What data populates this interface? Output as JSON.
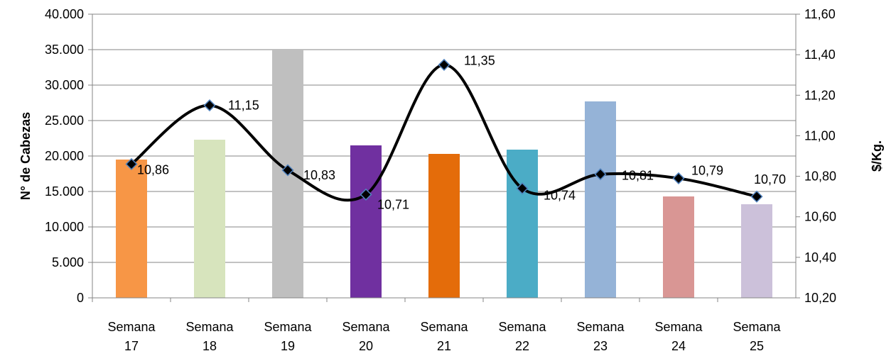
{
  "chart_data": {
    "type": "bar",
    "title": "",
    "categories": [
      [
        "Semana",
        "17"
      ],
      [
        "Semana",
        "18"
      ],
      [
        "Semana",
        "19"
      ],
      [
        "Semana",
        "20"
      ],
      [
        "Semana",
        "21"
      ],
      [
        "Semana",
        "22"
      ],
      [
        "Semana",
        "23"
      ],
      [
        "Semana",
        "24"
      ],
      [
        "Semana",
        "25"
      ]
    ],
    "series": [
      {
        "type": "bar",
        "axis": "left",
        "values": [
          19500,
          22300,
          35100,
          21500,
          20300,
          20900,
          27700,
          14300,
          13200
        ]
      },
      {
        "type": "line",
        "axis": "right",
        "values": [
          10.86,
          11.15,
          10.83,
          10.71,
          11.35,
          10.74,
          10.81,
          10.79,
          10.7
        ],
        "labels": [
          "10,86",
          "11,15",
          "10,83",
          "10,71",
          "11,35",
          "10,74",
          "10,81",
          "10,79",
          "10,70"
        ],
        "color": "#000000",
        "marker": "diamond"
      }
    ],
    "bar_colors": [
      "#F79646",
      "#D7E4BD",
      "#BFBFBF",
      "#7030A0",
      "#E46C0A",
      "#4BACC6",
      "#95B3D7",
      "#D99694",
      "#CCC1DA"
    ],
    "ylabel": "N° de Cabezas",
    "y2label": "$/Kg.",
    "ylim": [
      0,
      40000
    ],
    "y2lim": [
      10.2,
      11.6
    ],
    "yticks": [
      "0",
      "5.000",
      "10.000",
      "15.000",
      "20.000",
      "25.000",
      "30.000",
      "35.000",
      "40.000"
    ],
    "y2ticks": [
      "10,20",
      "10,40",
      "10,60",
      "10,80",
      "11,00",
      "11,20",
      "11,40",
      "11,60"
    ],
    "grid": true,
    "legend": "none"
  }
}
